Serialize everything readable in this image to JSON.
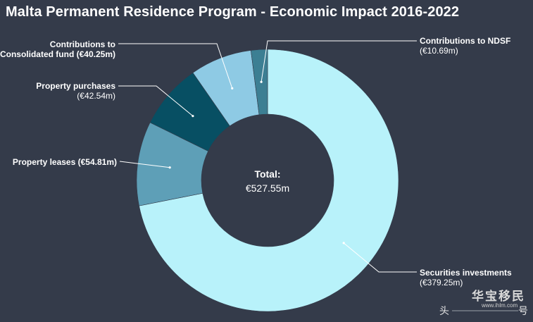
{
  "chart_data": {
    "type": "pie",
    "title": "Malta Permanent Residence Program - Economic Impact 2016-2022",
    "center_label": "Total:",
    "center_value": "€527.55m",
    "slices": [
      {
        "name": "Securities investments",
        "label_value": "(€379.25m)",
        "value": 379.25,
        "color": "#b8f2fa"
      },
      {
        "name": "Property leases",
        "label_value": "(€54.81m)",
        "value": 54.81,
        "color": "#5e9fb7"
      },
      {
        "name": "Property purchases",
        "label_value": "(€42.54m)",
        "value": 42.54,
        "color": "#074f63"
      },
      {
        "name": "Contributions to Consolidated fund",
        "label_value": "(€40.25m)",
        "value": 40.25,
        "color": "#8ecae4"
      },
      {
        "name": "Contributions to NDSF",
        "label_value": "(€10.69m)",
        "value": 10.69,
        "color": "#3c7f93"
      }
    ]
  },
  "watermark": {
    "text": "华宝移民",
    "sub": "www.ihlm.com",
    "left_char": "头",
    "right_char": "号"
  }
}
